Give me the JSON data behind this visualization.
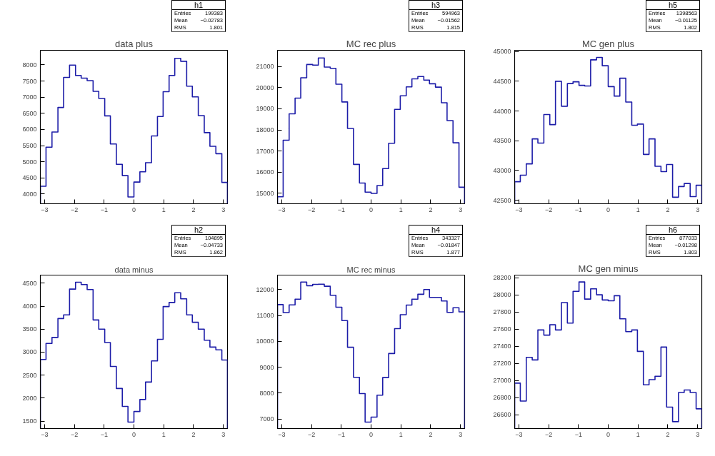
{
  "chart_data": [
    {
      "type": "histogram",
      "title": "data plus",
      "annotations": [
        "h1",
        "Entries 199383",
        "Mean −0.02783",
        "RMS 1.801"
      ],
      "color": "#1c1ca8",
      "grid": false,
      "bins": [
        -3.14,
        -2.95,
        -2.75,
        -2.55,
        -2.36,
        -2.16,
        -1.96,
        -1.77,
        -1.57,
        -1.37,
        -1.18,
        -0.98,
        -0.79,
        -0.59,
        -0.39,
        -0.2,
        0,
        0.2,
        0.39,
        0.59,
        0.79,
        0.98,
        1.18,
        1.37,
        1.57,
        1.77,
        1.96,
        2.16,
        2.36,
        2.55,
        2.75,
        2.95,
        3.14
      ],
      "values": [
        4240,
        5450,
        5920,
        6680,
        7610,
        7990,
        7670,
        7590,
        7510,
        7180,
        6960,
        6420,
        5550,
        4920,
        4570,
        3910,
        4370,
        4690,
        4970,
        5800,
        6400,
        7170,
        7670,
        8200,
        8110,
        7340,
        7010,
        6430,
        5900,
        5480,
        5250,
        4360
      ],
      "xlim": [
        -3.14,
        3.14
      ],
      "xticks": [
        {
          "value": -3,
          "label": "−3"
        },
        {
          "value": -2,
          "label": "−2"
        },
        {
          "value": -1,
          "label": "−1"
        },
        0,
        1,
        2,
        3
      ],
      "ylim": [
        3700,
        8450
      ],
      "yticks": [
        4000,
        4500,
        5000,
        5500,
        6000,
        6500,
        7000,
        7500,
        8000
      ]
    },
    {
      "type": "histogram",
      "title": "MC rec plus",
      "annotations": [
        "h3",
        "Entries 594963",
        "Mean −0.01562",
        "RMS 1.815"
      ],
      "color": "#1c1ca8",
      "grid": false,
      "bins": [
        -3.14,
        -2.95,
        -2.75,
        -2.55,
        -2.36,
        -2.16,
        -1.96,
        -1.77,
        -1.57,
        -1.37,
        -1.18,
        -0.98,
        -0.79,
        -0.59,
        -0.39,
        -0.2,
        0,
        0.2,
        0.39,
        0.59,
        0.79,
        0.98,
        1.18,
        1.37,
        1.57,
        1.77,
        1.96,
        2.16,
        2.36,
        2.55,
        2.75,
        2.95,
        3.14
      ],
      "values": [
        14840,
        17510,
        18760,
        19500,
        20460,
        21090,
        21060,
        21400,
        20970,
        20910,
        20160,
        19320,
        18070,
        16370,
        15490,
        15060,
        15000,
        15370,
        16170,
        17370,
        18970,
        19610,
        20030,
        20410,
        20520,
        20350,
        20180,
        20020,
        19280,
        18440,
        17390,
        15290
      ],
      "xlim": [
        -3.14,
        3.14
      ],
      "xticks": [
        {
          "value": -3,
          "label": "−3"
        },
        {
          "value": -2,
          "label": "−2"
        },
        {
          "value": -1,
          "label": "−1"
        },
        0,
        1,
        2,
        3
      ],
      "ylim": [
        14510,
        21760
      ],
      "yticks": [
        15000,
        16000,
        17000,
        18000,
        19000,
        20000,
        21000
      ]
    },
    {
      "type": "histogram",
      "title": "MC gen plus",
      "annotations": [
        "h5",
        "Entries 1398563",
        "Mean −0.01125",
        "RMS 1.802"
      ],
      "color": "#1c1ca8",
      "grid": false,
      "bins": [
        -3.14,
        -2.95,
        -2.75,
        -2.55,
        -2.36,
        -2.16,
        -1.96,
        -1.77,
        -1.57,
        -1.37,
        -1.18,
        -0.98,
        -0.79,
        -0.59,
        -0.39,
        -0.2,
        0,
        0.2,
        0.39,
        0.59,
        0.79,
        0.98,
        1.18,
        1.37,
        1.57,
        1.77,
        1.96,
        2.16,
        2.36,
        2.55,
        2.75,
        2.95,
        3.14
      ],
      "values": [
        42810,
        42920,
        43110,
        43530,
        43460,
        43940,
        43770,
        44500,
        44080,
        44460,
        44490,
        44430,
        44420,
        44860,
        44900,
        44760,
        44410,
        44250,
        44550,
        44150,
        43760,
        43780,
        43270,
        43530,
        43070,
        42980,
        43100,
        42550,
        42730,
        42780,
        42560,
        42750
      ],
      "xlim": [
        -3.14,
        3.14
      ],
      "xticks": [
        {
          "value": -3,
          "label": "−3"
        },
        {
          "value": -2,
          "label": "−2"
        },
        {
          "value": -1,
          "label": "−1"
        },
        0,
        1,
        2,
        3
      ],
      "ylim": [
        42440,
        45020
      ],
      "yticks": [
        42500,
        43000,
        43500,
        44000,
        44500,
        45000
      ]
    },
    {
      "type": "histogram",
      "title": "data minus",
      "annotations": [
        "h2",
        "Entries 104895",
        "Mean −0.04733",
        "RMS 1.862"
      ],
      "color": "#1c1ca8",
      "grid": false,
      "bins": [
        -3.14,
        -2.95,
        -2.75,
        -2.55,
        -2.36,
        -2.16,
        -1.96,
        -1.77,
        -1.57,
        -1.37,
        -1.18,
        -0.98,
        -0.79,
        -0.59,
        -0.39,
        -0.2,
        0,
        0.2,
        0.39,
        0.59,
        0.79,
        0.98,
        1.18,
        1.37,
        1.57,
        1.77,
        1.96,
        2.16,
        2.36,
        2.55,
        2.75,
        2.95,
        3.14
      ],
      "values": [
        2840,
        3190,
        3320,
        3730,
        3810,
        4370,
        4520,
        4470,
        4360,
        3700,
        3500,
        3210,
        2690,
        2210,
        1820,
        1480,
        1710,
        1970,
        2350,
        2810,
        3280,
        3990,
        4080,
        4290,
        4160,
        3810,
        3650,
        3500,
        3260,
        3110,
        3050,
        2830
      ],
      "xlim": [
        -3.14,
        3.14
      ],
      "xticks": [
        {
          "value": -3,
          "label": "−3"
        },
        {
          "value": -2,
          "label": "−2"
        },
        {
          "value": -1,
          "label": "−1"
        },
        0,
        1,
        2,
        3
      ],
      "ylim": [
        1340,
        4675
      ],
      "yticks": [
        1500,
        2000,
        2500,
        3000,
        3500,
        4000,
        4500
      ]
    },
    {
      "type": "histogram",
      "title": "MC rec minus",
      "annotations": [
        "h4",
        "Entries 343327",
        "Mean −0.01847",
        "RMS 1.877"
      ],
      "color": "#1c1ca8",
      "grid": false,
      "bins": [
        -3.14,
        -2.95,
        -2.75,
        -2.55,
        -2.36,
        -2.16,
        -1.96,
        -1.77,
        -1.57,
        -1.37,
        -1.18,
        -0.98,
        -0.79,
        -0.59,
        -0.39,
        -0.2,
        0,
        0.2,
        0.39,
        0.59,
        0.79,
        0.98,
        1.18,
        1.37,
        1.57,
        1.77,
        1.96,
        2.16,
        2.36,
        2.55,
        2.75,
        2.95,
        3.14
      ],
      "values": [
        11420,
        11110,
        11410,
        11630,
        12290,
        12150,
        12200,
        12210,
        12130,
        11780,
        11320,
        10800,
        9770,
        8610,
        7980,
        6880,
        7070,
        7920,
        8600,
        9530,
        10490,
        11030,
        11400,
        11630,
        11820,
        12000,
        11700,
        11700,
        11560,
        11120,
        11300,
        11140
      ],
      "xlim": [
        -3.14,
        3.14
      ],
      "xticks": [
        {
          "value": -3,
          "label": "−3"
        },
        {
          "value": -2,
          "label": "−2"
        },
        {
          "value": -1,
          "label": "−1"
        },
        0,
        1,
        2,
        3
      ],
      "ylim": [
        6630,
        12560
      ],
      "yticks": [
        7000,
        8000,
        9000,
        10000,
        11000,
        12000
      ]
    },
    {
      "type": "histogram",
      "title": "MC gen minus",
      "annotations": [
        "h6",
        "Entries 877033",
        "Mean −0.01298",
        "RMS 1.803"
      ],
      "color": "#1c1ca8",
      "grid": false,
      "bins": [
        -3.14,
        -2.95,
        -2.75,
        -2.55,
        -2.36,
        -2.16,
        -1.96,
        -1.77,
        -1.57,
        -1.37,
        -1.18,
        -0.98,
        -0.79,
        -0.59,
        -0.39,
        -0.2,
        0,
        0.2,
        0.39,
        0.59,
        0.79,
        0.98,
        1.18,
        1.37,
        1.57,
        1.77,
        1.96,
        2.16,
        2.36,
        2.55,
        2.75,
        2.95,
        3.14
      ],
      "values": [
        26970,
        26760,
        27270,
        27240,
        27590,
        27530,
        27650,
        27590,
        27910,
        27670,
        28040,
        28150,
        27950,
        28070,
        28000,
        27940,
        27930,
        27990,
        27720,
        27570,
        27590,
        27340,
        26950,
        27010,
        27050,
        27390,
        26690,
        26520,
        26860,
        26890,
        26860,
        26670
      ],
      "xlim": [
        -3.14,
        3.14
      ],
      "xticks": [
        {
          "value": -3,
          "label": "−3"
        },
        {
          "value": -2,
          "label": "−2"
        },
        {
          "value": -1,
          "label": "−1"
        },
        0,
        1,
        2,
        3
      ],
      "ylim": [
        26440,
        28230
      ],
      "yticks": [
        26600,
        26800,
        27000,
        27200,
        27400,
        27600,
        27800,
        28000,
        28200
      ]
    }
  ]
}
